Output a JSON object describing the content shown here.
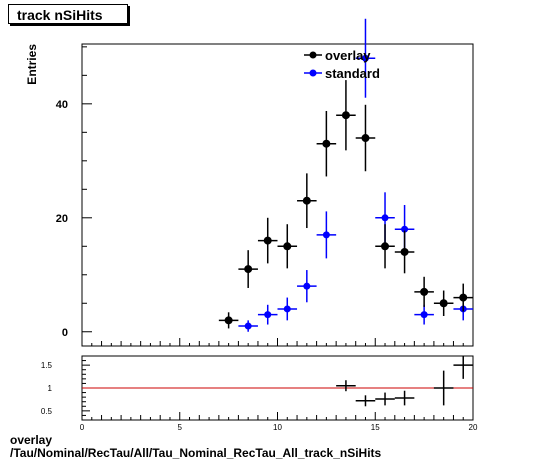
{
  "title": "track nSiHits",
  "footer": {
    "line1": "overlay",
    "line2": "/Tau/Nominal/RecTau/All/Tau_Nominal_RecTau_All_track_nSiHits"
  },
  "chart_data": [
    {
      "type": "scatter",
      "ylabel": "Entries",
      "xlim": [
        0,
        20
      ],
      "ylim": [
        -2.5,
        50.5
      ],
      "y_ticks": [
        0,
        20,
        40
      ],
      "legend_position": "top-center",
      "series": [
        {
          "name": "overlay",
          "color": "#000000",
          "x": [
            7.5,
            8.5,
            9.5,
            10.5,
            11.5,
            12.5,
            13.5,
            14.5,
            15.5,
            16.5,
            17.5,
            18.5,
            19.5
          ],
          "y": [
            2,
            11,
            16,
            15,
            23,
            33,
            38,
            34,
            15,
            14,
            7,
            5,
            6
          ]
        },
        {
          "name": "standard",
          "color": "#0000ff",
          "x": [
            8.5,
            9.5,
            10.5,
            11.5,
            12.5,
            14.5,
            15.5,
            16.5,
            17.5,
            19.5
          ],
          "y": [
            1,
            3,
            4,
            8,
            17,
            48,
            20,
            18,
            3,
            4
          ]
        }
      ]
    },
    {
      "type": "scatter",
      "xlim": [
        0,
        20
      ],
      "ylim": [
        0.3,
        1.7
      ],
      "x_ticks": [
        0,
        5,
        10,
        15,
        20
      ],
      "y_ticks": [
        0.5,
        1,
        1.5
      ],
      "y_tick_labels": [
        "0.5",
        "1",
        "1.5"
      ],
      "reference_line": {
        "y": 1,
        "color": "#cc0000"
      },
      "series": [
        {
          "name": "ratio",
          "color": "#000000",
          "x": [
            13.5,
            14.5,
            15.5,
            16.5,
            18.5,
            19.5
          ],
          "y": [
            1.05,
            0.72,
            0.76,
            0.78,
            1.0,
            1.5
          ]
        }
      ]
    }
  ]
}
